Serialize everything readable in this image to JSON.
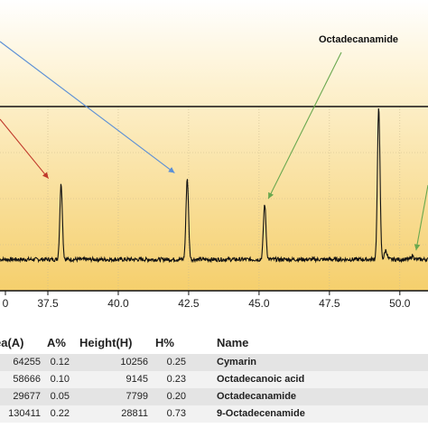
{
  "colors": {
    "background_top": "#ffffff",
    "background_bottom": "#f5cf6c",
    "trace": "#111111",
    "arrow_blue": "#5b8fd6",
    "arrow_red": "#c0392b",
    "arrow_green": "#6aa84f"
  },
  "chart_data": {
    "type": "line",
    "xlabel": "",
    "ylabel": "",
    "xlim": [
      35.8,
      51.0
    ],
    "ylim": [
      0,
      100
    ],
    "xticks": [
      "0",
      "37.5",
      "40.0",
      "42.5",
      "45.0",
      "47.5",
      "50.0"
    ],
    "xtick_values": [
      35.0,
      37.5,
      40.0,
      42.5,
      45.0,
      47.5,
      50.0
    ],
    "grid": true,
    "baseline": 17,
    "peaks": [
      {
        "x": 37.97,
        "height": 58
      },
      {
        "x": 42.45,
        "height": 61
      },
      {
        "x": 45.2,
        "height": 47
      },
      {
        "x": 49.25,
        "height": 100
      },
      {
        "x": 49.5,
        "height": 22
      },
      {
        "x": 50.45,
        "height": 19
      }
    ],
    "annotations": [
      {
        "text": "Octadecanamide",
        "color": "green",
        "target_x": 45.2
      },
      {
        "text": "",
        "color": "blue",
        "target_x": 42.45
      },
      {
        "text": "",
        "color": "red",
        "target_x": 37.97
      },
      {
        "text": "",
        "color": "green",
        "target_x": 50.45
      }
    ]
  },
  "table": {
    "headers": {
      "area": "ea(A)",
      "area_pct": "A%",
      "height": "Height(H)",
      "height_pct": "H%",
      "name": "Name"
    },
    "rows": [
      {
        "area": "64255",
        "area_pct": "0.12",
        "height": "10256",
        "height_pct": "0.25",
        "name": "Cymarin"
      },
      {
        "area": "58666",
        "area_pct": "0.10",
        "height": "9145",
        "height_pct": "0.23",
        "name": "Octadecanoic acid"
      },
      {
        "area": "29677",
        "area_pct": "0.05",
        "height": "7799",
        "height_pct": "0.20",
        "name": "Octadecanamide"
      },
      {
        "area": "130411",
        "area_pct": "0.22",
        "height": "28811",
        "height_pct": "0.73",
        "name": "9-Octadecenamide"
      }
    ]
  }
}
